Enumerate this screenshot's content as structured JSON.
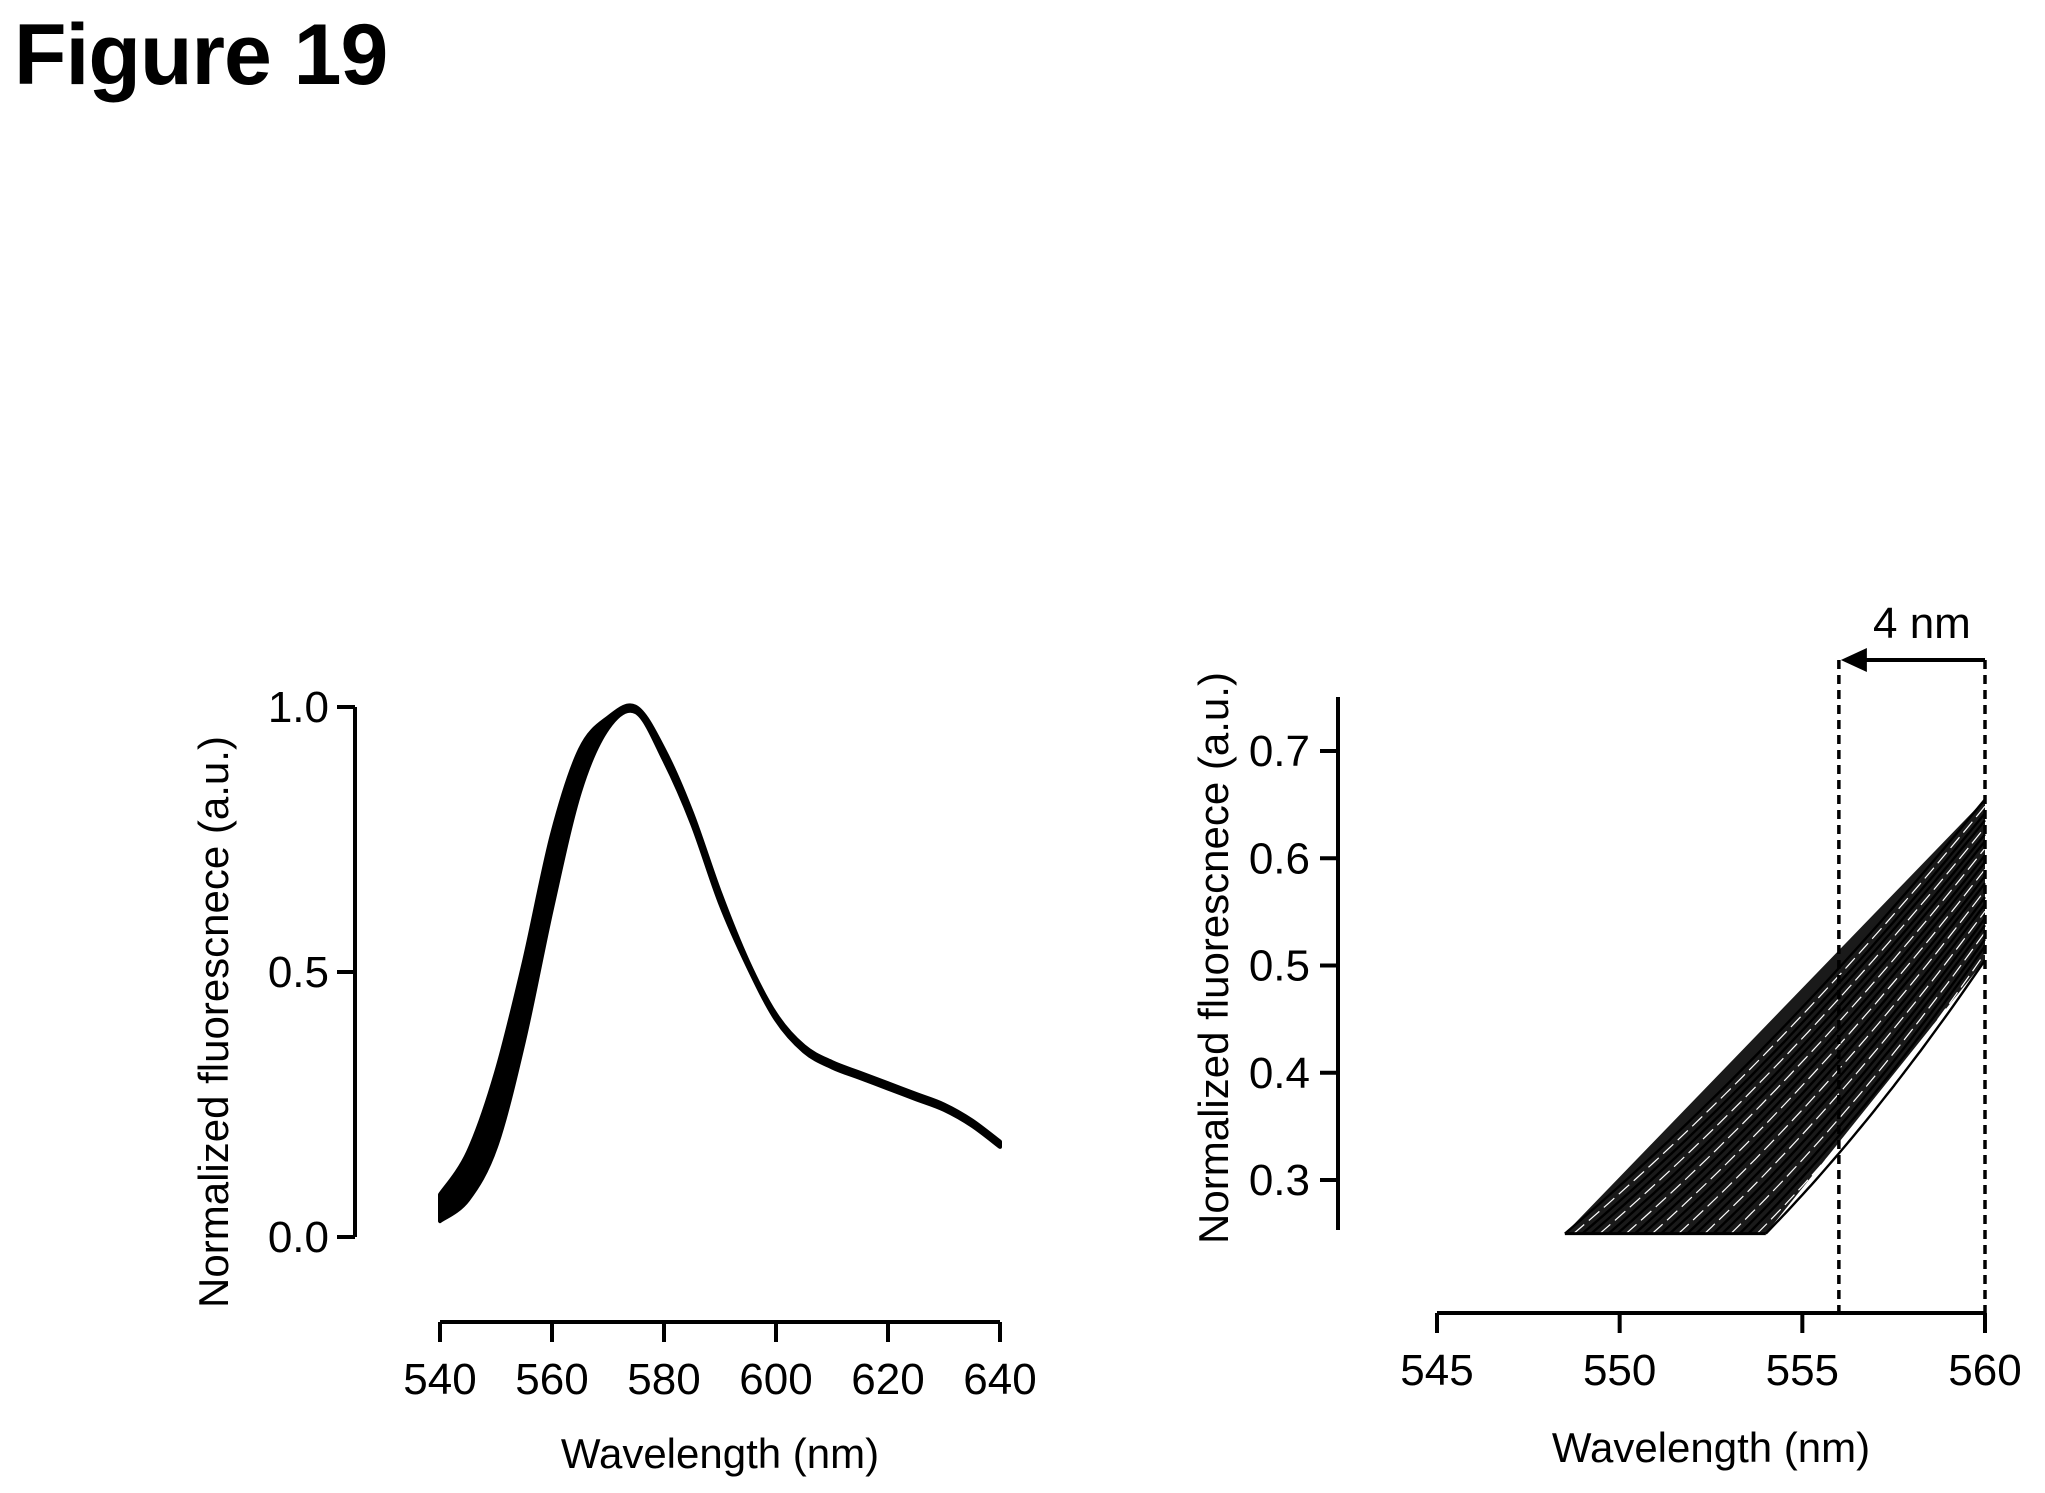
{
  "figure": {
    "title": "Figure 19"
  },
  "chart_data": [
    {
      "type": "line",
      "xlabel": "Wavelength (nm)",
      "ylabel": "Normalized fluorescnece (a.u.)",
      "xlim": [
        540,
        640
      ],
      "ylim": [
        0.0,
        1.0
      ],
      "xticks": [
        "540",
        "560",
        "580",
        "600",
        "620",
        "640"
      ],
      "yticks": [
        "0.0",
        "0.5",
        "1.0"
      ],
      "grid": false,
      "legend": "none",
      "band_series": {
        "x": [
          540,
          545,
          550,
          555,
          560,
          565,
          570,
          575,
          580,
          585,
          590,
          595,
          600,
          605,
          610,
          615,
          620,
          625,
          630,
          635,
          640
        ],
        "upper": [
          0.08,
          0.16,
          0.31,
          0.52,
          0.76,
          0.92,
          0.98,
          1.0,
          0.92,
          0.8,
          0.65,
          0.52,
          0.42,
          0.36,
          0.33,
          0.31,
          0.29,
          0.27,
          0.25,
          0.22,
          0.18
        ],
        "lower": [
          0.03,
          0.07,
          0.17,
          0.37,
          0.62,
          0.84,
          0.96,
          0.99,
          0.9,
          0.78,
          0.63,
          0.51,
          0.41,
          0.35,
          0.32,
          0.3,
          0.28,
          0.26,
          0.24,
          0.21,
          0.17
        ]
      }
    },
    {
      "type": "line",
      "xlabel": "Wavelength (nm)",
      "ylabel": "Normalized fluorescnece (a.u.)",
      "xlim": [
        545,
        560
      ],
      "ylim": [
        0.25,
        0.75
      ],
      "xticks": [
        "545",
        "550",
        "555",
        "560"
      ],
      "yticks": [
        "0.3",
        "0.4",
        "0.5",
        "0.6",
        "0.7"
      ],
      "grid": false,
      "legend": "none",
      "curve_start": {
        "x_left": 548.5,
        "x_right": 554.0,
        "y": 0.25
      },
      "curve_end": {
        "x": 560,
        "y_top": 0.655,
        "y_bottom": 0.505
      },
      "curve_count": 24,
      "markers": [
        556,
        560
      ],
      "annotation": {
        "text": "4 nm",
        "from_x": 560,
        "to_x": 556
      }
    }
  ]
}
